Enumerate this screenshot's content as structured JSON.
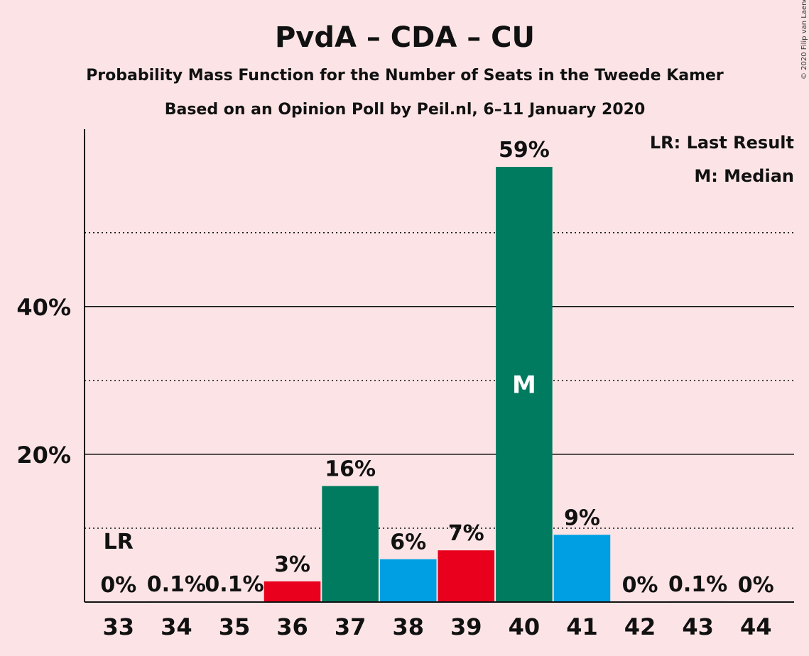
{
  "chart_data": {
    "type": "bar",
    "title": "PvdA – CDA – CU",
    "subtitle1": "Probability Mass Function for the Number of Seats in the Tweede Kamer",
    "subtitle2": "Based on an Opinion Poll by Peil.nl, 6–11 January 2020",
    "copyright": "© 2020 Filip van Laenen",
    "categories": [
      "33",
      "34",
      "35",
      "36",
      "37",
      "38",
      "39",
      "40",
      "41",
      "42",
      "43",
      "44"
    ],
    "values": [
      0,
      0.1,
      0.1,
      3,
      16,
      6,
      7,
      59,
      9,
      0,
      0.1,
      0
    ],
    "plotted_values": [
      0,
      0.1,
      0.1,
      2.8,
      15.7,
      5.8,
      7.0,
      58.9,
      9.1,
      0,
      0.1,
      0
    ],
    "labels": [
      "0%",
      "0.1%",
      "0.1%",
      "3%",
      "16%",
      "6%",
      "7%",
      "59%",
      "9%",
      "0%",
      "0.1%",
      "0%"
    ],
    "bar_colors": [
      "#e8001c",
      "#e8001c",
      "#e8001c",
      "#e8001c",
      "#007b5f",
      "#009fe3",
      "#e8001c",
      "#007b5f",
      "#009fe3",
      "#e8001c",
      "#e8001c",
      "#e8001c"
    ],
    "ylim": [
      0,
      64
    ],
    "yticks": [
      {
        "value": 20,
        "label": "20%"
      },
      {
        "value": 40,
        "label": "40%"
      }
    ],
    "minor_gridlines": [
      10,
      30,
      50
    ],
    "last_result": {
      "category": "33",
      "label": "LR"
    },
    "median": {
      "category": "40",
      "label": "M"
    },
    "legend": [
      "LR: Last Result",
      "M: Median"
    ],
    "legend_position": "top-right",
    "colors": {
      "background": "#fce4e6",
      "red": "#e8001c",
      "green": "#007b5f",
      "blue": "#009fe3"
    }
  }
}
